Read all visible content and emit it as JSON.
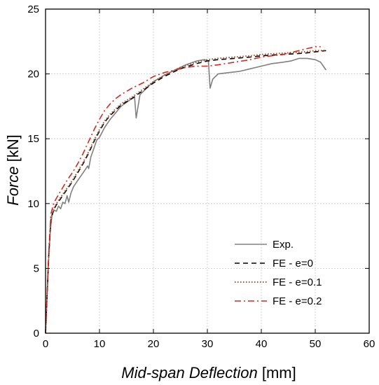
{
  "chart_data": {
    "type": "line",
    "title": "",
    "xlabel_italic": "Mid-span Deflection",
    "xlabel_unit": "[mm]",
    "ylabel_italic": "Force",
    "ylabel_unit": "[kN]",
    "xlim": [
      0,
      60
    ],
    "ylim": [
      0,
      25
    ],
    "xticks": [
      0,
      10,
      20,
      30,
      40,
      50,
      60
    ],
    "yticks": [
      0,
      5,
      10,
      15,
      20,
      25
    ],
    "grid": true,
    "legend_position": "bottom-right",
    "series": [
      {
        "name": "Exp.",
        "color": "#808080",
        "style": "solid",
        "points": [
          [
            0,
            0
          ],
          [
            0.3,
            3
          ],
          [
            0.6,
            6
          ],
          [
            0.9,
            8
          ],
          [
            1.2,
            9.1
          ],
          [
            1.6,
            9.5
          ],
          [
            2.0,
            9.4
          ],
          [
            2.4,
            9.8
          ],
          [
            2.8,
            9.6
          ],
          [
            3.2,
            10.1
          ],
          [
            3.6,
            10.0
          ],
          [
            4.0,
            10.6
          ],
          [
            4.3,
            10.1
          ],
          [
            4.7,
            10.8
          ],
          [
            5.2,
            11.3
          ],
          [
            6.0,
            11.8
          ],
          [
            7.0,
            12.4
          ],
          [
            7.8,
            12.9
          ],
          [
            8.0,
            12.7
          ],
          [
            8.4,
            13.6
          ],
          [
            9.0,
            14.3
          ],
          [
            9.5,
            14.9
          ],
          [
            10.0,
            15.1
          ],
          [
            11.0,
            15.9
          ],
          [
            12.0,
            16.5
          ],
          [
            13.0,
            17.0
          ],
          [
            14.0,
            17.5
          ],
          [
            15.0,
            17.8
          ],
          [
            16.0,
            18.1
          ],
          [
            16.5,
            18.2
          ],
          [
            16.8,
            16.6
          ],
          [
            17.5,
            18.4
          ],
          [
            18.0,
            18.6
          ],
          [
            19.0,
            19.0
          ],
          [
            20.0,
            19.4
          ],
          [
            22.0,
            19.9
          ],
          [
            24.0,
            20.3
          ],
          [
            26.0,
            20.7
          ],
          [
            28.0,
            21.0
          ],
          [
            29.5,
            21.1
          ],
          [
            30.2,
            21.0
          ],
          [
            30.5,
            18.9
          ],
          [
            31.0,
            19.6
          ],
          [
            32.0,
            20.0
          ],
          [
            34.0,
            20.1
          ],
          [
            36.0,
            20.2
          ],
          [
            38.0,
            20.4
          ],
          [
            40.0,
            20.6
          ],
          [
            42.0,
            20.8
          ],
          [
            44.0,
            20.9
          ],
          [
            45.5,
            21.0
          ],
          [
            47.0,
            21.2
          ],
          [
            48.5,
            21.2
          ],
          [
            50.0,
            21.1
          ],
          [
            51.0,
            20.9
          ],
          [
            51.5,
            20.6
          ],
          [
            52.0,
            20.3
          ]
        ]
      },
      {
        "name": "FE - e=0",
        "color": "#000000",
        "style": "dashed",
        "points": [
          [
            0,
            0
          ],
          [
            0.3,
            3
          ],
          [
            0.6,
            6
          ],
          [
            1.0,
            8.8
          ],
          [
            1.5,
            9.5
          ],
          [
            2.0,
            9.9
          ],
          [
            3.0,
            10.5
          ],
          [
            4.0,
            11.1
          ],
          [
            5.0,
            11.7
          ],
          [
            6.0,
            12.4
          ],
          [
            7.0,
            13.1
          ],
          [
            8.0,
            13.9
          ],
          [
            9.0,
            14.8
          ],
          [
            10.0,
            15.6
          ],
          [
            11.0,
            16.3
          ],
          [
            12.0,
            16.8
          ],
          [
            13.0,
            17.2
          ],
          [
            14.0,
            17.6
          ],
          [
            16.0,
            18.1
          ],
          [
            18.0,
            18.7
          ],
          [
            20.0,
            19.3
          ],
          [
            22.0,
            19.8
          ],
          [
            25.0,
            20.4
          ],
          [
            28.0,
            20.8
          ],
          [
            30.0,
            21.0
          ],
          [
            32.0,
            21.1
          ],
          [
            35.0,
            21.2
          ],
          [
            38.0,
            21.3
          ],
          [
            40.0,
            21.4
          ],
          [
            44.0,
            21.5
          ],
          [
            48.0,
            21.6
          ],
          [
            50.0,
            21.7
          ],
          [
            52.0,
            21.8
          ]
        ]
      },
      {
        "name": "FE - e=0.1",
        "color": "#a0522d",
        "style": "dotted",
        "points": [
          [
            0,
            0
          ],
          [
            0.3,
            3
          ],
          [
            0.6,
            6
          ],
          [
            1.0,
            8.9
          ],
          [
            1.5,
            9.6
          ],
          [
            2.0,
            10.0
          ],
          [
            3.0,
            10.6
          ],
          [
            4.0,
            11.2
          ],
          [
            5.0,
            11.8
          ],
          [
            6.0,
            12.5
          ],
          [
            7.0,
            13.2
          ],
          [
            8.0,
            14.0
          ],
          [
            9.0,
            14.9
          ],
          [
            10.0,
            15.7
          ],
          [
            11.0,
            16.4
          ],
          [
            12.0,
            16.9
          ],
          [
            13.0,
            17.3
          ],
          [
            14.0,
            17.7
          ],
          [
            16.0,
            18.2
          ],
          [
            18.0,
            18.8
          ],
          [
            20.0,
            19.4
          ],
          [
            22.0,
            19.9
          ],
          [
            25.0,
            20.5
          ],
          [
            28.0,
            20.9
          ],
          [
            30.0,
            21.1
          ],
          [
            32.0,
            21.2
          ],
          [
            35.0,
            21.3
          ],
          [
            38.0,
            21.4
          ],
          [
            40.0,
            21.5
          ],
          [
            44.0,
            21.6
          ],
          [
            48.0,
            21.7
          ],
          [
            50.0,
            21.8
          ],
          [
            52.0,
            21.8
          ]
        ]
      },
      {
        "name": "FE - e=0.2",
        "color": "#d42a1e",
        "style": "dashdot",
        "points": [
          [
            0,
            0
          ],
          [
            0.3,
            3.2
          ],
          [
            0.6,
            6.3
          ],
          [
            1.0,
            9.2
          ],
          [
            1.5,
            10.0
          ],
          [
            2.0,
            10.4
          ],
          [
            3.0,
            11.1
          ],
          [
            4.0,
            11.8
          ],
          [
            5.0,
            12.4
          ],
          [
            6.0,
            13.1
          ],
          [
            7.0,
            13.9
          ],
          [
            8.0,
            14.8
          ],
          [
            9.0,
            15.7
          ],
          [
            10.0,
            16.5
          ],
          [
            11.0,
            17.2
          ],
          [
            12.0,
            17.7
          ],
          [
            13.0,
            18.1
          ],
          [
            14.0,
            18.4
          ],
          [
            16.0,
            18.9
          ],
          [
            18.0,
            19.3
          ],
          [
            20.0,
            19.8
          ],
          [
            22.0,
            20.1
          ],
          [
            24.0,
            20.3
          ],
          [
            26.0,
            20.5
          ],
          [
            28.0,
            20.6
          ],
          [
            30.0,
            20.6
          ],
          [
            32.0,
            20.7
          ],
          [
            35.0,
            20.9
          ],
          [
            38.0,
            21.1
          ],
          [
            40.0,
            21.3
          ],
          [
            44.0,
            21.5
          ],
          [
            48.0,
            21.9
          ],
          [
            50.0,
            22.1
          ],
          [
            51.0,
            22.1
          ]
        ]
      }
    ]
  }
}
